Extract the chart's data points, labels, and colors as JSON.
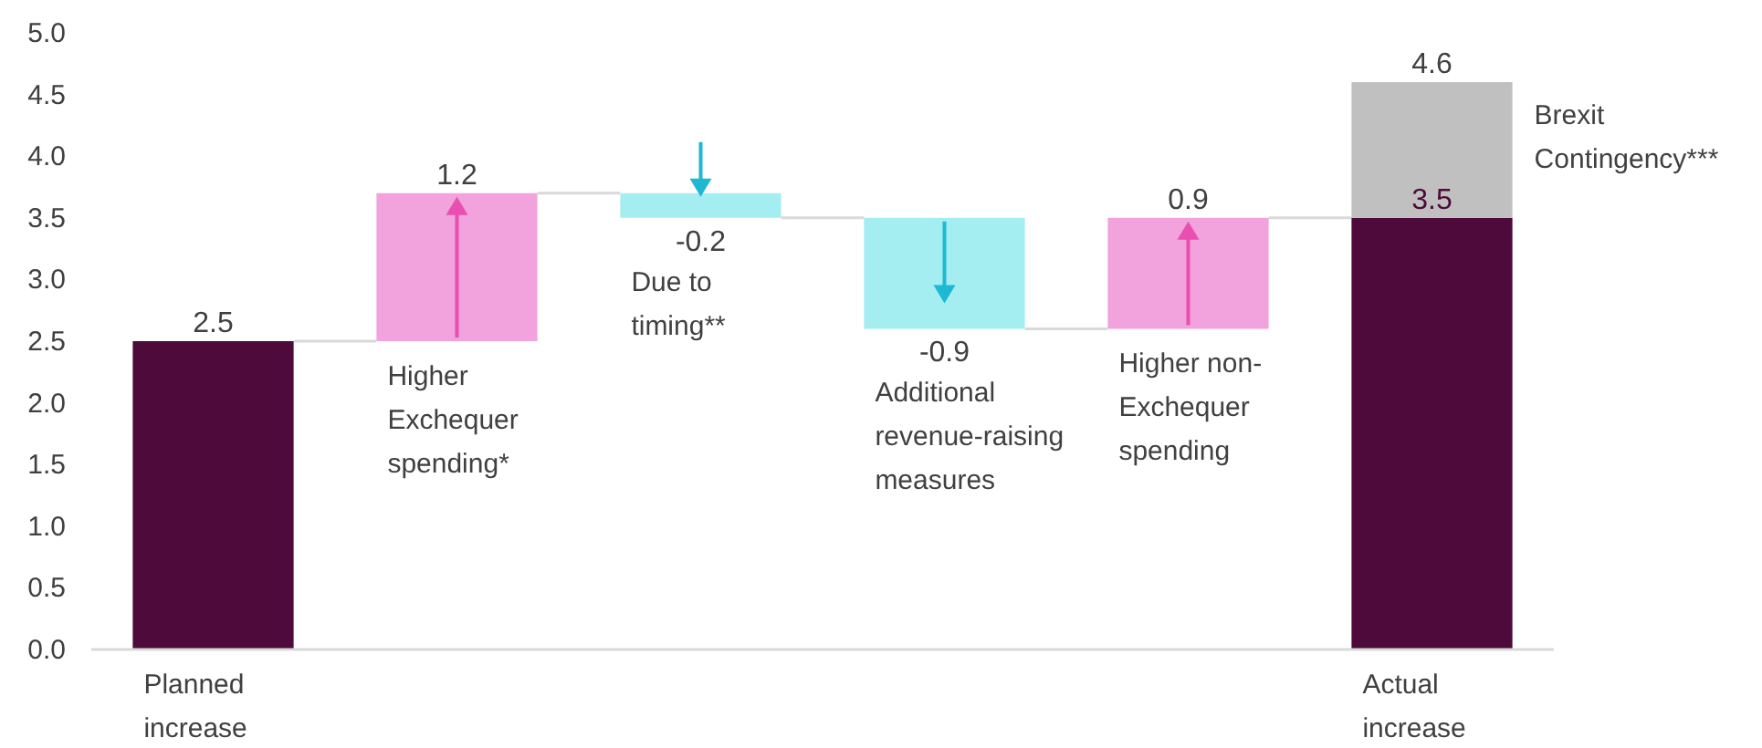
{
  "chart_data": {
    "type": "bar",
    "categories": [
      "Planned\nincrease",
      "Higher\nExchequer\nspending*",
      "Due to\ntiming**",
      "Additional\nrevenue-raising\nmeasures",
      "Higher non-\nExchequer\nspending",
      "Actual\nincrease"
    ],
    "series": [
      {
        "base": [
          0,
          2.5,
          3.7,
          3.5,
          2.6,
          0
        ],
        "colors": [
          "#4d0a3a",
          "#f2a2dc",
          "#a4eef2",
          "#a4eef2",
          "#f2a2dc",
          "#4d0a3a"
        ],
        "values": [
          2.5,
          1.2,
          -0.2,
          -0.9,
          0.9,
          3.5
        ],
        "value_labels": [
          "2.5",
          "1.2",
          "-0.2",
          "-0.9",
          "0.9",
          "3.5"
        ]
      },
      {
        "name": "Brexit Contingency***",
        "color": "#c0c0c0",
        "base": [
          null,
          null,
          null,
          null,
          null,
          3.5
        ],
        "values": [
          null,
          null,
          null,
          null,
          null,
          1.1
        ]
      }
    ],
    "annotations": [
      {
        "text": "4.6",
        "x": "Actual\nincrease",
        "y": 4.6
      }
    ],
    "ylim": [
      0,
      5
    ],
    "yticks": [
      {
        "value": 0,
        "label": "0.0"
      },
      {
        "value": 0.5,
        "label": "0.5"
      },
      {
        "value": 1,
        "label": "1.0"
      },
      {
        "value": 1.5,
        "label": "1.5"
      },
      {
        "value": 2,
        "label": "2.0"
      },
      {
        "value": 2.5,
        "label": "2.5"
      },
      {
        "value": 3,
        "label": "3.0"
      },
      {
        "value": 3.5,
        "label": "3.5"
      },
      {
        "value": 4,
        "label": "4.0"
      },
      {
        "value": 4.5,
        "label": "4.5"
      },
      {
        "value": 5,
        "label": "5.0"
      }
    ],
    "grid": false
  }
}
